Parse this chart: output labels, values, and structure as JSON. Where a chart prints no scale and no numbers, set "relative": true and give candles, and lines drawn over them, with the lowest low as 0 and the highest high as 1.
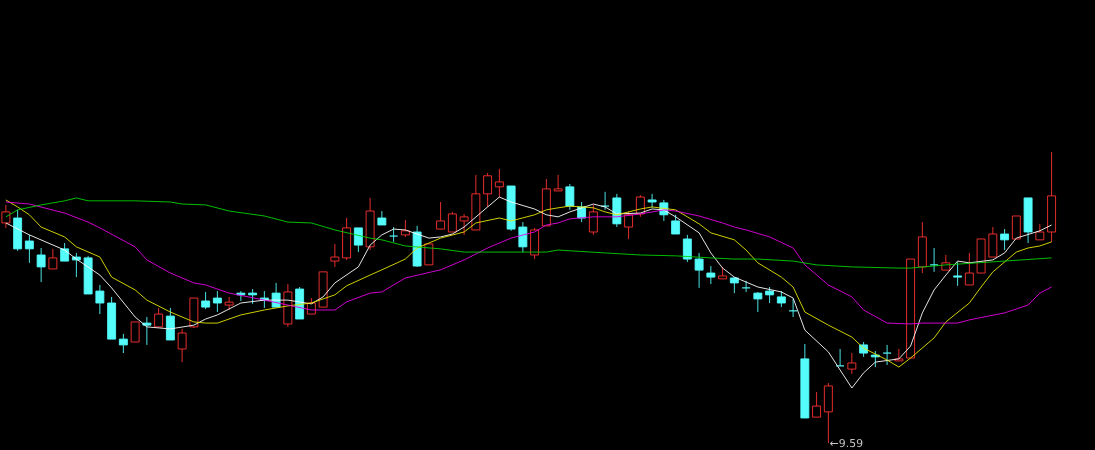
{
  "chart_data": {
    "type": "candlestick",
    "relative": true,
    "categories": [
      null,
      null,
      null,
      null,
      null,
      null,
      null,
      null,
      null,
      null,
      null,
      null,
      null,
      null,
      null,
      null,
      null,
      null,
      null,
      null,
      null,
      null,
      null,
      null,
      null,
      null,
      null,
      null,
      null,
      null,
      null,
      null,
      null,
      null,
      null,
      null,
      null,
      null,
      null,
      null,
      null,
      null,
      null,
      null,
      null,
      null,
      null,
      null,
      null,
      null,
      null,
      null,
      null,
      null,
      null,
      null,
      null,
      null,
      null,
      null,
      null,
      null,
      null,
      null,
      null,
      null,
      null,
      null,
      null,
      null,
      null,
      null,
      null,
      null,
      null,
      null,
      null,
      null,
      null,
      null,
      null,
      null,
      null,
      null,
      null,
      null,
      null,
      null,
      null,
      null
    ],
    "ohlc": [
      [
        0.756,
        0.818,
        0.739,
        0.794
      ],
      [
        0.773,
        0.801,
        0.66,
        0.667
      ],
      [
        0.694,
        0.715,
        0.619,
        0.667
      ],
      [
        0.646,
        0.67,
        0.553,
        0.605
      ],
      [
        0.598,
        0.667,
        0.598,
        0.636
      ],
      [
        0.667,
        0.687,
        0.625,
        0.625
      ],
      [
        0.639,
        0.653,
        0.57,
        0.629
      ],
      [
        0.636,
        0.643,
        0.512,
        0.512
      ],
      [
        0.522,
        0.543,
        0.443,
        0.481
      ],
      [
        0.481,
        0.502,
        0.357,
        0.357
      ],
      [
        0.357,
        0.375,
        0.309,
        0.337
      ],
      [
        0.347,
        0.416,
        0.347,
        0.416
      ],
      [
        0.412,
        0.433,
        0.337,
        0.405
      ],
      [
        0.399,
        0.464,
        0.399,
        0.443
      ],
      [
        0.436,
        0.464,
        0.354,
        0.354
      ],
      [
        0.323,
        0.392,
        0.278,
        0.378
      ],
      [
        0.399,
        0.498,
        0.395,
        0.498
      ],
      [
        0.488,
        0.519,
        0.46,
        0.467
      ],
      [
        0.498,
        0.522,
        0.45,
        0.481
      ],
      [
        0.474,
        0.502,
        0.457,
        0.484
      ],
      [
        0.515,
        0.522,
        0.488,
        0.509
      ],
      [
        0.515,
        0.529,
        0.478,
        0.509
      ],
      [
        0.498,
        0.522,
        0.464,
        0.491
      ],
      [
        0.515,
        0.55,
        0.467,
        0.467
      ],
      [
        0.409,
        0.546,
        0.399,
        0.519
      ],
      [
        0.529,
        0.536,
        0.426,
        0.426
      ],
      [
        0.443,
        0.498,
        0.443,
        0.481
      ],
      [
        0.467,
        0.588,
        0.467,
        0.588
      ],
      [
        0.625,
        0.684,
        0.605,
        0.639
      ],
      [
        0.636,
        0.773,
        0.629,
        0.739
      ],
      [
        0.739,
        0.739,
        0.656,
        0.68
      ],
      [
        0.674,
        0.842,
        0.663,
        0.797
      ],
      [
        0.773,
        0.797,
        0.749,
        0.749
      ],
      [
        0.711,
        0.742,
        0.691,
        0.711
      ],
      [
        0.715,
        0.766,
        0.708,
        0.729
      ],
      [
        0.725,
        0.746,
        0.605,
        0.608
      ],
      [
        0.612,
        0.684,
        0.612,
        0.684
      ],
      [
        0.735,
        0.828,
        0.735,
        0.763
      ],
      [
        0.725,
        0.794,
        0.725,
        0.787
      ],
      [
        0.763,
        0.787,
        0.715,
        0.777
      ],
      [
        0.732,
        0.921,
        0.732,
        0.856
      ],
      [
        0.856,
        0.928,
        0.811,
        0.918
      ],
      [
        0.88,
        0.942,
        0.845,
        0.897
      ],
      [
        0.883,
        0.883,
        0.729,
        0.735
      ],
      [
        0.742,
        0.759,
        0.656,
        0.674
      ],
      [
        0.646,
        0.739,
        0.632,
        0.732
      ],
      [
        0.746,
        0.907,
        0.746,
        0.873
      ],
      [
        0.866,
        0.921,
        0.866,
        0.873
      ],
      [
        0.88,
        0.89,
        0.801,
        0.814
      ],
      [
        0.811,
        0.828,
        0.759,
        0.773
      ],
      [
        0.725,
        0.818,
        0.715,
        0.794
      ],
      [
        0.814,
        0.863,
        0.801,
        0.814
      ],
      [
        0.842,
        0.856,
        0.742,
        0.753
      ],
      [
        0.742,
        0.794,
        0.701,
        0.784
      ],
      [
        0.787,
        0.852,
        0.777,
        0.845
      ],
      [
        0.835,
        0.856,
        0.808,
        0.828
      ],
      [
        0.825,
        0.835,
        0.763,
        0.784
      ],
      [
        0.763,
        0.784,
        0.718,
        0.718
      ],
      [
        0.701,
        0.715,
        0.622,
        0.632
      ],
      [
        0.632,
        0.653,
        0.533,
        0.594
      ],
      [
        0.584,
        0.608,
        0.546,
        0.57
      ],
      [
        0.564,
        0.605,
        0.564,
        0.574
      ],
      [
        0.567,
        0.57,
        0.515,
        0.55
      ],
      [
        0.533,
        0.557,
        0.519,
        0.533
      ],
      [
        0.515,
        0.519,
        0.45,
        0.495
      ],
      [
        0.522,
        0.536,
        0.481,
        0.509
      ],
      [
        0.502,
        0.522,
        0.467,
        0.481
      ],
      [
        0.454,
        0.495,
        0.433,
        0.454
      ],
      [
        0.289,
        0.34,
        0.086,
        0.086
      ],
      [
        0.089,
        0.175,
        0.089,
        0.127
      ],
      [
        0.107,
        0.206,
        0,
        0.196
      ],
      [
        0.265,
        0.323,
        0.265,
        0.265
      ],
      [
        0.254,
        0.309,
        0.237,
        0.275
      ],
      [
        0.337,
        0.347,
        0.296,
        0.309
      ],
      [
        0.302,
        0.316,
        0.261,
        0.296
      ],
      [
        0.309,
        0.337,
        0.268,
        0.309
      ],
      [
        0.282,
        0.323,
        0.282,
        0.289
      ],
      [
        0.292,
        0.632,
        0.292,
        0.632
      ],
      [
        0.605,
        0.759,
        0.584,
        0.708
      ],
      [
        0.612,
        0.67,
        0.588,
        0.612
      ],
      [
        0.594,
        0.646,
        0.594,
        0.619
      ],
      [
        0.574,
        0.622,
        0.54,
        0.57
      ],
      [
        0.543,
        0.653,
        0.543,
        0.584
      ],
      [
        0.584,
        0.701,
        0.584,
        0.701
      ],
      [
        0.639,
        0.742,
        0.639,
        0.718
      ],
      [
        0.718,
        0.735,
        0.663,
        0.698
      ],
      [
        0.701,
        0.78,
        0.701,
        0.78
      ],
      [
        0.842,
        0.842,
        0.687,
        0.725
      ],
      [
        0.698,
        0.753,
        0.698,
        0.725
      ],
      [
        0.725,
        1,
        0.691,
        0.849
      ]
    ],
    "colors": [
      "#ff3232",
      "#54fcfc",
      "#54fcfc",
      "#54fcfc",
      "#ff3232",
      "#54fcfc",
      "#54fcfc",
      "#54fcfc",
      "#54fcfc",
      "#54fcfc",
      "#54fcfc",
      "#ff3232",
      "#54fcfc",
      "#ff3232",
      "#54fcfc",
      "#ff3232",
      "#ff3232",
      "#54fcfc",
      "#54fcfc",
      "#ff3232",
      "#54fcfc",
      "#54fcfc",
      "#54fcfc",
      "#54fcfc",
      "#ff3232",
      "#54fcfc",
      "#ff3232",
      "#ff3232",
      "#ff3232",
      "#ff3232",
      "#54fcfc",
      "#ff3232",
      "#54fcfc",
      "#54fcfc",
      "#ff3232",
      "#54fcfc",
      "#ff3232",
      "#ff3232",
      "#ff3232",
      "#ff3232",
      "#ff3232",
      "#ff3232",
      "#ff3232",
      "#54fcfc",
      "#54fcfc",
      "#ff3232",
      "#ff3232",
      "#ff3232",
      "#54fcfc",
      "#54fcfc",
      "#ff3232",
      "#54fcfc",
      "#54fcfc",
      "#ff3232",
      "#ff3232",
      "#54fcfc",
      "#54fcfc",
      "#54fcfc",
      "#54fcfc",
      "#54fcfc",
      "#54fcfc",
      "#ff3232",
      "#54fcfc",
      "#54fcfc",
      "#54fcfc",
      "#54fcfc",
      "#54fcfc",
      "#54fcfc",
      "#54fcfc",
      "#ff3232",
      "#ff3232",
      "#54fcfc",
      "#ff3232",
      "#54fcfc",
      "#54fcfc",
      "#54fcfc",
      "#ff3232",
      "#ff3232",
      "#ff3232",
      "#54fcfc",
      "#ff3232",
      "#54fcfc",
      "#ff3232",
      "#ff3232",
      "#ff3232",
      "#54fcfc",
      "#ff3232",
      "#54fcfc",
      "#ff3232",
      "#ff3232"
    ],
    "series": [
      {
        "type": "line",
        "color": "#ffffff",
        "values": [
          0.756,
          null,
          0.715,
          null,
          null,
          0.663,
          0.632,
          null,
          0.577,
          0.533,
          null,
          0.433,
          0.399,
          null,
          0.392,
          null,
          0.405,
          0.426,
          0.44,
          null,
          0.481,
          null,
          0.491,
          null,
          0.491,
          null,
          0.478,
          0.502,
          0.55,
          null,
          0.605,
          0.68,
          0.715,
          0.735,
          0.732,
          null,
          0.704,
          0.708,
          0.718,
          0.742,
          null,
          0.811,
          0.845,
          0.828,
          null,
          0.804,
          0.784,
          0.777,
          0.794,
          null,
          0.821,
          0.811,
          0.787,
          null,
          0.79,
          0.804,
          0.801,
          0.777,
          null,
          0.722,
          0.653,
          0.601,
          0.57,
          null,
          0.536,
          null,
          0.519,
          0.498,
          0.388,
          null,
          0.313,
          0.251,
          0.189,
          0.241,
          0.278,
          null,
          0.289,
          0.333,
          0.447,
          0.526,
          0.577,
          0.625,
          0.619,
          null,
          0.629,
          0.653,
          0.704,
          null,
          0.729,
          0.749
        ]
      },
      {
        "type": "line",
        "color": "#e6e600",
        "values": [
          0.835,
          0.811,
          0.784,
          0.742,
          null,
          0.708,
          0.674,
          null,
          0.639,
          0.57,
          null,
          0.526,
          0.491,
          null,
          0.45,
          null,
          0.416,
          0.412,
          0.412,
          null,
          0.44,
          null,
          0.457,
          null,
          0.471,
          null,
          0.481,
          null,
          0.509,
          0.54,
          null,
          0.577,
          0.595,
          null,
          0.632,
          0.67,
          null,
          0.704,
          null,
          0.725,
          0.756,
          null,
          0.773,
          0.763,
          null,
          0.784,
          0.801,
          0.808,
          0.814,
          null,
          0.808,
          0.794,
          0.784,
          null,
          0.804,
          0.811,
          null,
          0.801,
          0.777,
          0.753,
          0.722,
          null,
          0.698,
          0.663,
          0.619,
          null,
          0.57,
          0.536,
          0.45,
          null,
          0.405,
          null,
          0.364,
          0.326,
          null,
          0.285,
          0.261,
          0.292,
          null,
          0.361,
          0.416,
          null,
          0.481,
          0.536,
          0.588,
          null,
          0.656,
          0.67,
          0.677,
          0.691
        ]
      },
      {
        "type": "line",
        "color": "#e600e6",
        "values": [
          0.828,
          null,
          0.821,
          null,
          null,
          0.79,
          null,
          0.759,
          0.739,
          null,
          null,
          0.674,
          0.629,
          null,
          0.584,
          null,
          0.55,
          0.543,
          null,
          0.515,
          null,
          null,
          0.491,
          null,
          0.474,
          null,
          0.457,
          null,
          0.457,
          0.485,
          null,
          0.515,
          0.519,
          null,
          0.567,
          null,
          null,
          0.595,
          null,
          0.629,
          null,
          0.67,
          null,
          0.704,
          null,
          0.725,
          0.749,
          0.756,
          0.77,
          null,
          0.777,
          null,
          0.777,
          null,
          0.787,
          null,
          0.801,
          0.797,
          null,
          0.78,
          null,
          0.756,
          0.742,
          0.732,
          null,
          0.708,
          null,
          0.67,
          0.612,
          null,
          0.543,
          null,
          0.502,
          0.457,
          null,
          0.412,
          null,
          0.409,
          0.412,
          null,
          null,
          0.412,
          0.423,
          null,
          null,
          0.447,
          null,
          0.474,
          0.515,
          0.536
        ]
      },
      {
        "type": "line",
        "color": "#00d200",
        "values": [
          0.777,
          0.801,
          null,
          0.818,
          null,
          0.832,
          0.842,
          0.832,
          null,
          null,
          null,
          0.832,
          null,
          null,
          0.828,
          0.821,
          null,
          0.818,
          null,
          0.797,
          null,
          null,
          0.78,
          null,
          0.759,
          null,
          0.756,
          null,
          0.732,
          null,
          null,
          0.704,
          0.698,
          null,
          0.677,
          null,
          null,
          0.667,
          null,
          0.656,
          null,
          null,
          null,
          null,
          0.656,
          null,
          0.656,
          0.663,
          null,
          null,
          null,
          0.653,
          null,
          null,
          0.646,
          null,
          null,
          0.643,
          null,
          null,
          0.636,
          null,
          0.632,
          null,
          0.632,
          null,
          null,
          0.625,
          null,
          0.612,
          null,
          null,
          0.605,
          null,
          null,
          null,
          0.601,
          0.601,
          null,
          null,
          0.612,
          null,
          null,
          null,
          null,
          0.625,
          null,
          null,
          null,
          0.636
        ]
      }
    ],
    "annotations": [
      "←9.59"
    ]
  }
}
